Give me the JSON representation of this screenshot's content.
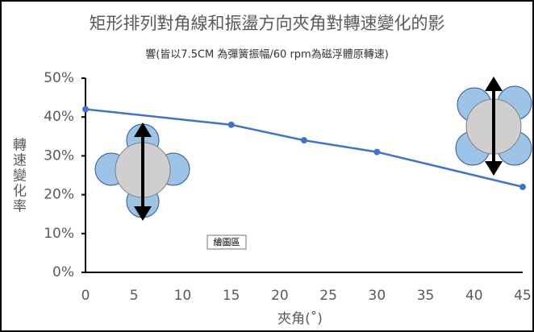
{
  "chart_data": {
    "type": "line",
    "title": "矩形排列對角線和振盪方向夾角對轉速變化的影",
    "subtitle": "響(皆以7.5CM 為彈簧振幅/60  rpm為磁浮體原轉速)",
    "xlabel": "夾角(˚)",
    "ylabel": "轉速變化率",
    "annotation": "繪圖區",
    "series": [
      {
        "color": "#4472c4",
        "x": [
          0,
          15,
          22.5,
          30,
          45
        ],
        "values": [
          42,
          38,
          34,
          31,
          22
        ]
      }
    ],
    "xlim": [
      0,
      45
    ],
    "xticks": [
      0,
      5,
      10,
      15,
      20,
      25,
      30,
      35,
      40,
      45
    ],
    "ylim": [
      0,
      50
    ],
    "yticks": [
      {
        "value": 0,
        "label": "0%"
      },
      {
        "value": 10,
        "label": "10%"
      },
      {
        "value": 20,
        "label": "20%"
      },
      {
        "value": 30,
        "label": "30%"
      },
      {
        "value": 40,
        "label": "40%"
      },
      {
        "value": 50,
        "label": "50%"
      }
    ]
  }
}
